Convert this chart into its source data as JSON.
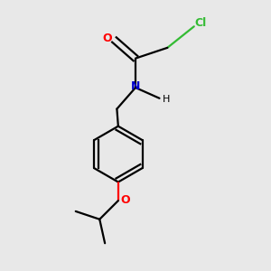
{
  "background_color": "#e8e8e8",
  "atom_colors": {
    "C": "#000000",
    "N": "#0000cc",
    "O_carbonyl": "#ff0000",
    "O_ether": "#ff0000",
    "Cl": "#33bb33",
    "H": "#000000"
  },
  "figsize": [
    3.0,
    3.0
  ],
  "dpi": 100,
  "lw": 1.6,
  "font_size": 9
}
